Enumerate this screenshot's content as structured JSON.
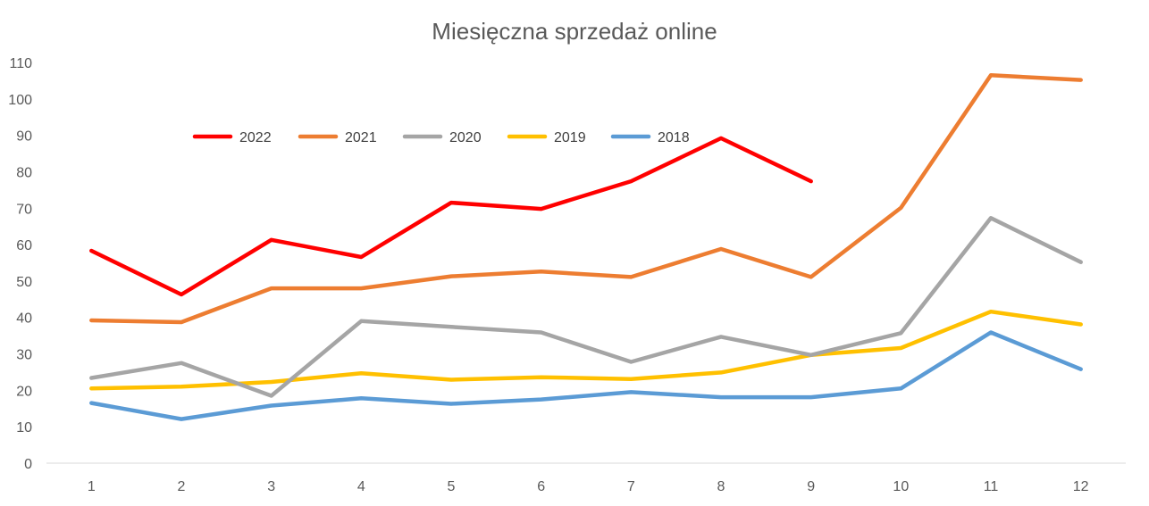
{
  "chart_data": {
    "type": "line",
    "title": "Miesięczna sprzedaż online",
    "xlabel": "",
    "ylabel": "",
    "categories": [
      "1",
      "2",
      "3",
      "4",
      "5",
      "6",
      "7",
      "8",
      "9",
      "10",
      "11",
      "12"
    ],
    "ylim": [
      0,
      110
    ],
    "yticks": [
      "0",
      "10",
      "20",
      "30",
      "40",
      "50",
      "60",
      "70",
      "80",
      "90",
      "100",
      "110"
    ],
    "grid": false,
    "legend_position": "top",
    "series": [
      {
        "name": "2022",
        "color": "#ff0000",
        "values": [
          58.3,
          46.3,
          61.3,
          56.6,
          71.5,
          69.8,
          77.4,
          89.2,
          77.4,
          null,
          null,
          null
        ]
      },
      {
        "name": "2021",
        "color": "#ed7d31",
        "values": [
          39.2,
          38.7,
          48.0,
          48.0,
          51.3,
          52.6,
          51.1,
          58.8,
          51.1,
          70.1,
          106.5,
          105.2
        ]
      },
      {
        "name": "2020",
        "color": "#a5a5a5",
        "values": [
          23.4,
          27.5,
          18.5,
          39.0,
          37.4,
          35.9,
          27.8,
          34.7,
          29.7,
          35.7,
          67.3,
          55.2
        ]
      },
      {
        "name": "2019",
        "color": "#ffc000",
        "values": [
          20.5,
          21.0,
          22.3,
          24.7,
          22.9,
          23.6,
          23.1,
          24.9,
          29.7,
          31.6,
          41.6,
          38.1
        ]
      },
      {
        "name": "2018",
        "color": "#5b9bd5",
        "values": [
          16.5,
          12.1,
          15.8,
          17.8,
          16.3,
          17.5,
          19.5,
          18.1,
          18.1,
          20.5,
          35.9,
          25.8
        ]
      }
    ]
  }
}
